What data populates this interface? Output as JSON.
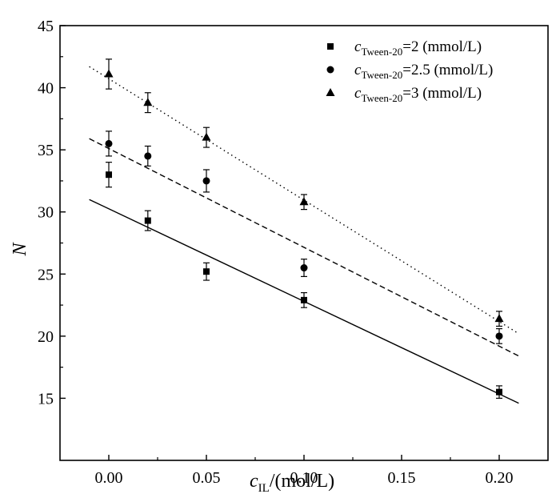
{
  "chart_data": {
    "type": "scatter",
    "xlabel": {
      "var": "c",
      "sub": "IL",
      "unit": "/(mol/L)"
    },
    "ylabel": "N",
    "xlim": [
      -0.025,
      0.225
    ],
    "ylim": [
      10,
      45
    ],
    "xticks": [
      0.0,
      0.05,
      0.1,
      0.15,
      0.2
    ],
    "xtick_labels": [
      "0.00",
      "0.05",
      "0.10",
      "0.15",
      "0.20"
    ],
    "yticks": [
      15,
      20,
      25,
      30,
      35,
      40,
      45
    ],
    "ytick_labels": [
      "15",
      "20",
      "25",
      "30",
      "35",
      "40",
      "45"
    ],
    "legend_position": "top-right",
    "series": [
      {
        "id": "s1",
        "marker": "square",
        "line": "solid",
        "legend": {
          "var": "c",
          "sub": "Tween-20",
          "rest": "=2 (mmol/L)"
        },
        "x": [
          0.0,
          0.02,
          0.05,
          0.1,
          0.2
        ],
        "y": [
          33.0,
          29.3,
          25.2,
          22.9,
          15.5
        ],
        "err": [
          1.0,
          0.8,
          0.7,
          0.6,
          0.5
        ],
        "fit": {
          "x": [
            -0.01,
            0.21
          ],
          "y": [
            31.0,
            14.6
          ]
        }
      },
      {
        "id": "s2",
        "marker": "circle",
        "line": "dashed",
        "legend": {
          "var": "c",
          "sub": "Tween-20",
          "rest": "=2.5 (mmol/L)"
        },
        "x": [
          0.0,
          0.02,
          0.05,
          0.1,
          0.2
        ],
        "y": [
          35.5,
          34.5,
          32.5,
          25.5,
          20.0
        ],
        "err": [
          1.0,
          0.8,
          0.9,
          0.7,
          0.6
        ],
        "fit": {
          "x": [
            -0.01,
            0.21
          ],
          "y": [
            35.9,
            18.4
          ]
        }
      },
      {
        "id": "s3",
        "marker": "triangle",
        "line": "dotted",
        "legend": {
          "var": "c",
          "sub": "Tween-20",
          "rest": "=3 (mmol/L)"
        },
        "x": [
          0.0,
          0.02,
          0.05,
          0.1,
          0.2
        ],
        "y": [
          41.1,
          38.8,
          36.0,
          30.8,
          21.4
        ],
        "err": [
          1.2,
          0.8,
          0.8,
          0.6,
          0.6
        ],
        "fit": {
          "x": [
            -0.01,
            0.21
          ],
          "y": [
            41.7,
            20.2
          ]
        }
      }
    ]
  }
}
